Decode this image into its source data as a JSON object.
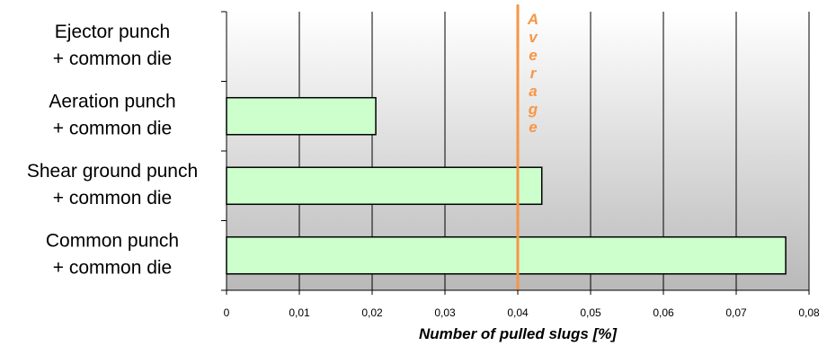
{
  "chart_data": {
    "type": "bar",
    "orientation": "horizontal",
    "categories": [
      [
        "Ejector punch",
        "+ common die"
      ],
      [
        "Aeration punch",
        "+ common die"
      ],
      [
        "Shear ground punch",
        "+ common die"
      ],
      [
        "Common punch",
        "+ common die"
      ]
    ],
    "values": [
      0,
      0.0205,
      0.0433,
      0.0768
    ],
    "xlabel": "Number of pulled slugs [%]",
    "ylabel": "",
    "xlim": [
      0,
      0.08
    ],
    "xticks": [
      "0",
      "0,01",
      "0,02",
      "0,03",
      "0,04",
      "0,05",
      "0,06",
      "0,07",
      "0,08"
    ],
    "grid": "vertical",
    "reference_line": {
      "label": "Average",
      "value": 0.04
    },
    "colors": {
      "bar_fill": "#ccffcc",
      "bar_stroke": "#000000",
      "reference_line": "#f79646",
      "grid": "#000000"
    }
  }
}
